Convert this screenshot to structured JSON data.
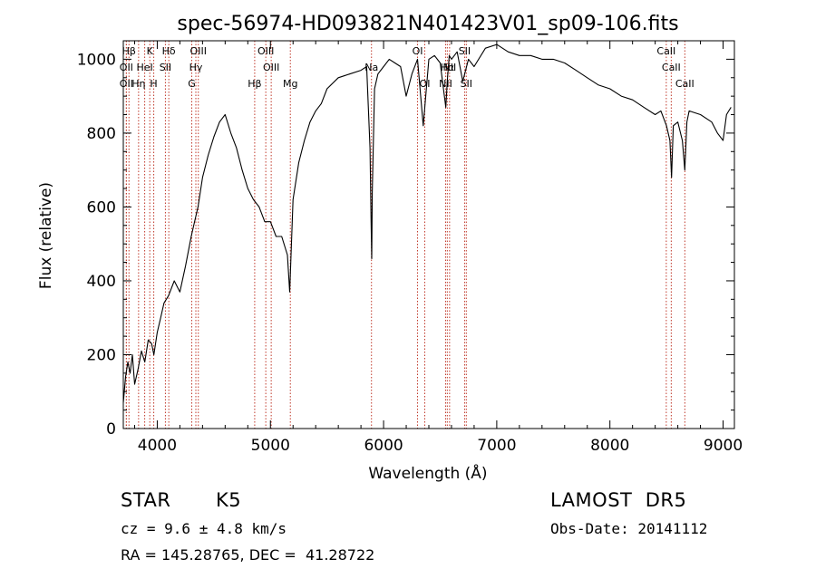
{
  "chart_data": {
    "type": "line",
    "title": "spec-56974-HD093821N401423V01_sp09-106.fits",
    "xlabel": "Wavelength (Å)",
    "ylabel": "Flux (relative)",
    "xlim": [
      3700,
      9100
    ],
    "ylim": [
      0,
      1050
    ],
    "x_ticks": [
      4000,
      5000,
      6000,
      7000,
      8000,
      9000
    ],
    "y_ticks": [
      0,
      200,
      400,
      600,
      800,
      1000
    ],
    "grid": false,
    "series": [
      {
        "x": [
          3700,
          3720,
          3740,
          3760,
          3780,
          3800,
          3830,
          3860,
          3890,
          3920,
          3950,
          3970,
          4000,
          4030,
          4060,
          4100,
          4150,
          4200,
          4250,
          4300,
          4330,
          4360,
          4400,
          4450,
          4500,
          4550,
          4600,
          4650,
          4700,
          4750,
          4800,
          4850,
          4900,
          4950,
          5000,
          5050,
          5100,
          5150,
          5170,
          5180,
          5200,
          5250,
          5300,
          5350,
          5400,
          5450,
          5500,
          5600,
          5700,
          5800,
          5850,
          5880,
          5890,
          5895,
          5900,
          5920,
          5950,
          6000,
          6050,
          6100,
          6150,
          6200,
          6250,
          6300,
          6350,
          6400,
          6450,
          6500,
          6550,
          6563,
          6580,
          6600,
          6650,
          6700,
          6750,
          6800,
          6900,
          7000,
          7100,
          7200,
          7300,
          7400,
          7500,
          7600,
          7700,
          7800,
          7900,
          8000,
          8100,
          8200,
          8300,
          8400,
          8450,
          8500,
          8530,
          8545,
          8560,
          8600,
          8640,
          8662,
          8680,
          8700,
          8800,
          8900,
          8950,
          9000,
          9030,
          9050,
          9070
        ],
        "y": [
          70,
          140,
          180,
          150,
          200,
          120,
          160,
          210,
          180,
          240,
          230,
          200,
          260,
          300,
          340,
          360,
          400,
          370,
          440,
          520,
          560,
          600,
          680,
          740,
          790,
          830,
          850,
          800,
          760,
          700,
          650,
          620,
          600,
          560,
          560,
          520,
          520,
          470,
          370,
          450,
          620,
          720,
          780,
          830,
          860,
          880,
          920,
          950,
          960,
          970,
          980,
          760,
          560,
          460,
          640,
          920,
          960,
          980,
          1000,
          990,
          980,
          900,
          960,
          1000,
          820,
          1000,
          1010,
          990,
          870,
          940,
          1010,
          1000,
          1020,
          940,
          1000,
          980,
          1030,
          1040,
          1020,
          1010,
          1010,
          1000,
          1000,
          990,
          970,
          950,
          930,
          920,
          900,
          890,
          870,
          850,
          860,
          820,
          780,
          680,
          820,
          830,
          780,
          700,
          830,
          860,
          850,
          830,
          800,
          780,
          850,
          860,
          870
        ]
      }
    ],
    "lines": [
      {
        "label": "Hβ",
        "x": 3750
      },
      {
        "label": "OII",
        "x": 3727
      },
      {
        "label": "OII",
        "x": 3727
      },
      {
        "label": "Hη",
        "x": 3835
      },
      {
        "label": "HeI",
        "x": 3889
      },
      {
        "label": "K",
        "x": 3934
      },
      {
        "label": "H",
        "x": 3969
      },
      {
        "label": "SII",
        "x": 4072
      },
      {
        "label": "Hδ",
        "x": 4102
      },
      {
        "label": "OIII",
        "x": 4363
      },
      {
        "label": "Hγ",
        "x": 4341
      },
      {
        "label": "G",
        "x": 4305
      },
      {
        "label": "Hβ",
        "x": 4861
      },
      {
        "label": "OIII",
        "x": 4959
      },
      {
        "label": "OIII",
        "x": 5007
      },
      {
        "label": "Mg",
        "x": 5176
      },
      {
        "label": "Na",
        "x": 5893
      },
      {
        "label": "OI",
        "x": 6300
      },
      {
        "label": "OI",
        "x": 6364
      },
      {
        "label": "NII",
        "x": 6548
      },
      {
        "label": "Hα",
        "x": 6563
      },
      {
        "label": "NII",
        "x": 6583
      },
      {
        "label": "SII",
        "x": 6716
      },
      {
        "label": "SII",
        "x": 6731
      },
      {
        "label": "CaII",
        "x": 8498
      },
      {
        "label": "CaII",
        "x": 8542
      },
      {
        "label": "CaII",
        "x": 8662
      }
    ]
  },
  "info": {
    "object_class": "STAR",
    "subclass": "K5",
    "survey": "LAMOST  DR5",
    "cz": "cz = 9.6 ± 4.8 km/s",
    "obs_date": "Obs-Date: 20141112",
    "coords": "RA = 145.28765, DEC =  41.28722"
  }
}
